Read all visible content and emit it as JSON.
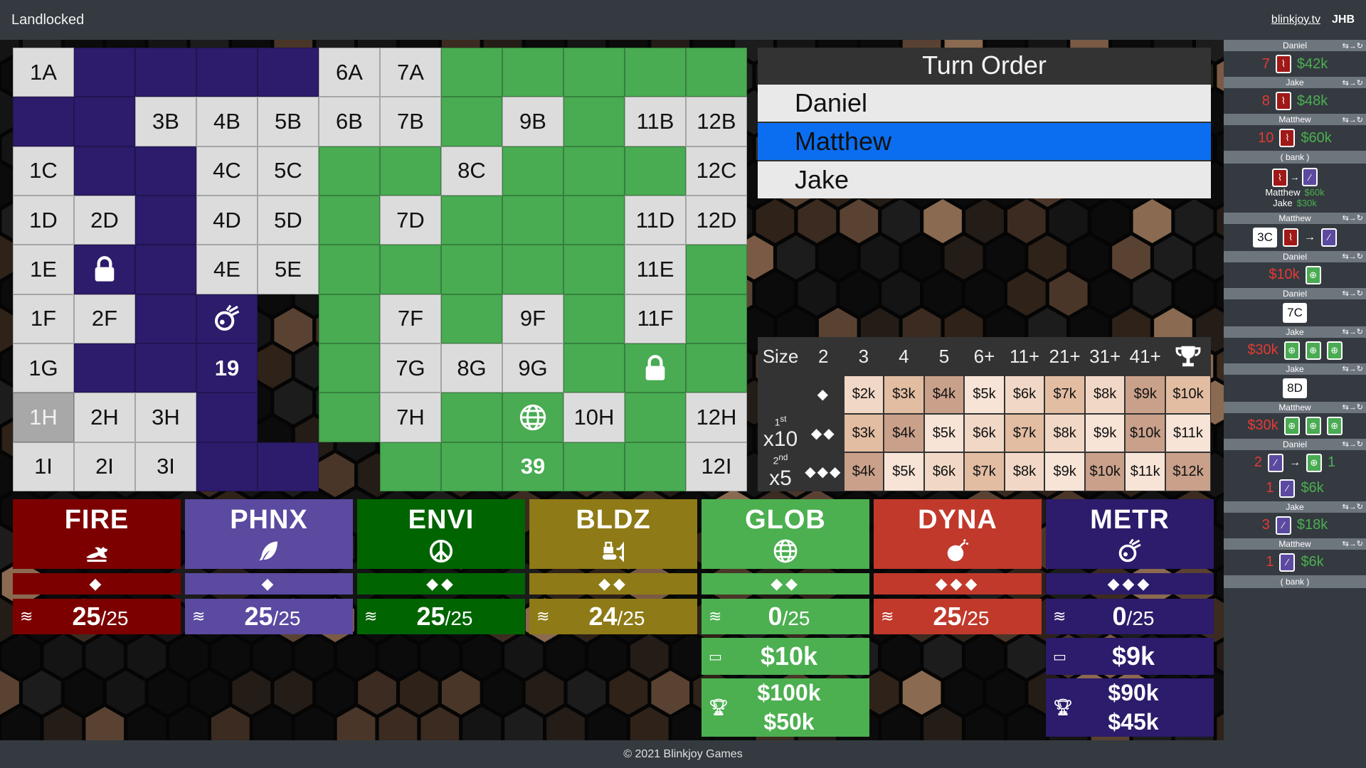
{
  "app": {
    "title": "Landlocked",
    "link": "blinkjoy.tv",
    "user": "JHB"
  },
  "footer": "© 2021 Blinkjoy Games",
  "colors": {
    "fire": "#7c0000",
    "phnx": "#5b4aa0",
    "envi": "#006400",
    "bldz": "#8e7a16",
    "glob": "#4caf50",
    "dyna": "#c0392b",
    "metr": "#2d1b6b"
  },
  "board": [
    [
      {
        "t": "N",
        "l": "1A"
      },
      {
        "t": "M"
      },
      {
        "t": "M"
      },
      {
        "t": "M"
      },
      {
        "t": "M"
      },
      {
        "t": "N",
        "l": "6A"
      },
      {
        "t": "N",
        "l": "7A"
      },
      {
        "t": "G"
      },
      {
        "t": "G"
      },
      {
        "t": "G"
      },
      {
        "t": "G"
      },
      {
        "t": "G"
      }
    ],
    [
      {
        "t": "M"
      },
      {
        "t": "M"
      },
      {
        "t": "N",
        "l": "3B"
      },
      {
        "t": "N",
        "l": "4B"
      },
      {
        "t": "N",
        "l": "5B"
      },
      {
        "t": "N",
        "l": "6B"
      },
      {
        "t": "N",
        "l": "7B"
      },
      {
        "t": "G"
      },
      {
        "t": "N",
        "l": "9B"
      },
      {
        "t": "G"
      },
      {
        "t": "N",
        "l": "11B"
      },
      {
        "t": "N",
        "l": "12B"
      }
    ],
    [
      {
        "t": "N",
        "l": "1C"
      },
      {
        "t": "M"
      },
      {
        "t": "M"
      },
      {
        "t": "N",
        "l": "4C"
      },
      {
        "t": "N",
        "l": "5C"
      },
      {
        "t": "G"
      },
      {
        "t": "G"
      },
      {
        "t": "N",
        "l": "8C"
      },
      {
        "t": "G"
      },
      {
        "t": "G"
      },
      {
        "t": "G"
      },
      {
        "t": "N",
        "l": "12C"
      }
    ],
    [
      {
        "t": "N",
        "l": "1D"
      },
      {
        "t": "N",
        "l": "2D"
      },
      {
        "t": "M"
      },
      {
        "t": "N",
        "l": "4D"
      },
      {
        "t": "N",
        "l": "5D"
      },
      {
        "t": "G"
      },
      {
        "t": "N",
        "l": "7D"
      },
      {
        "t": "G"
      },
      {
        "t": "G"
      },
      {
        "t": "G"
      },
      {
        "t": "N",
        "l": "11D"
      },
      {
        "t": "N",
        "l": "12D"
      }
    ],
    [
      {
        "t": "N",
        "l": "1E"
      },
      {
        "t": "M",
        "i": "lock-icon"
      },
      {
        "t": "M"
      },
      {
        "t": "N",
        "l": "4E"
      },
      {
        "t": "N",
        "l": "5E"
      },
      {
        "t": "G"
      },
      {
        "t": "G"
      },
      {
        "t": "G"
      },
      {
        "t": "G"
      },
      {
        "t": "G"
      },
      {
        "t": "N",
        "l": "11E"
      },
      {
        "t": "G"
      }
    ],
    [
      {
        "t": "N",
        "l": "1F"
      },
      {
        "t": "N",
        "l": "2F"
      },
      {
        "t": "M"
      },
      {
        "t": "M",
        "i": "comet-icon"
      },
      {
        "t": "E"
      },
      {
        "t": "G"
      },
      {
        "t": "N",
        "l": "7F"
      },
      {
        "t": "G"
      },
      {
        "t": "N",
        "l": "9F"
      },
      {
        "t": "G"
      },
      {
        "t": "N",
        "l": "11F"
      },
      {
        "t": "G"
      }
    ],
    [
      {
        "t": "N",
        "l": "1G"
      },
      {
        "t": "M"
      },
      {
        "t": "M"
      },
      {
        "t": "M",
        "l": "19"
      },
      {
        "t": "E"
      },
      {
        "t": "G"
      },
      {
        "t": "N",
        "l": "7G"
      },
      {
        "t": "N",
        "l": "8G"
      },
      {
        "t": "N",
        "l": "9G"
      },
      {
        "t": "G"
      },
      {
        "t": "G",
        "i": "lock-icon"
      },
      {
        "t": "G"
      }
    ],
    [
      {
        "t": "D",
        "l": "1H"
      },
      {
        "t": "N",
        "l": "2H"
      },
      {
        "t": "N",
        "l": "3H"
      },
      {
        "t": "M"
      },
      {
        "t": "E"
      },
      {
        "t": "G"
      },
      {
        "t": "N",
        "l": "7H"
      },
      {
        "t": "G"
      },
      {
        "t": "G",
        "i": "globe-icon"
      },
      {
        "t": "N",
        "l": "10H"
      },
      {
        "t": "G"
      },
      {
        "t": "N",
        "l": "12H"
      }
    ],
    [
      {
        "t": "N",
        "l": "1I"
      },
      {
        "t": "N",
        "l": "2I"
      },
      {
        "t": "N",
        "l": "3I"
      },
      {
        "t": "M"
      },
      {
        "t": "M"
      },
      {
        "t": "E"
      },
      {
        "t": "G"
      },
      {
        "t": "G"
      },
      {
        "t": "G",
        "l": "39"
      },
      {
        "t": "G"
      },
      {
        "t": "G"
      },
      {
        "t": "N",
        "l": "12I"
      }
    ]
  ],
  "turn_order": {
    "title": "Turn Order",
    "players": [
      "Daniel",
      "Matthew",
      "Jake"
    ],
    "active_index": 1
  },
  "price_table": {
    "headers": [
      "Size",
      "2",
      "3",
      "4",
      "5",
      "6+",
      "11+",
      "21+",
      "31+",
      "41+"
    ],
    "rows": [
      {
        "label": "◆",
        "prices": [
          "$2k",
          "$3k",
          "$4k",
          "$5k",
          "$6k",
          "$7k",
          "$8k",
          "$9k",
          "$10k"
        ],
        "shade": [
          "p1",
          "p2",
          "p3",
          "p4",
          "p1",
          "p2",
          "p1",
          "p3",
          "p2"
        ]
      },
      {
        "label": "◆◆",
        "prices": [
          "$3k",
          "$4k",
          "$5k",
          "$6k",
          "$7k",
          "$8k",
          "$9k",
          "$10k",
          "$11k"
        ],
        "shade": [
          "p2",
          "p3",
          "p4",
          "p1",
          "p2",
          "p1",
          "p4",
          "p3",
          "p4"
        ]
      },
      {
        "label": "◆◆◆",
        "prices": [
          "$4k",
          "$5k",
          "$6k",
          "$7k",
          "$8k",
          "$9k",
          "$10k",
          "$11k",
          "$12k"
        ],
        "shade": [
          "p3",
          "p4",
          "p1",
          "p2",
          "p1",
          "p4",
          "p3",
          "p4",
          "p3"
        ]
      }
    ],
    "bonus": {
      "first_sup": "1st",
      "first_mult": "x10",
      "second_sup": "2nd",
      "second_mult": "x5"
    }
  },
  "companies": [
    {
      "name": "FIRE",
      "icon": "dragon-icon",
      "tier": "◆",
      "stock": "25",
      "max": "/25",
      "bg": "#7c0000",
      "light": "#8c0a0a"
    },
    {
      "name": "PHNX",
      "icon": "feather-icon",
      "tier": "◆",
      "stock": "25",
      "max": "/25",
      "bg": "#5b4aa0",
      "light": "#6656a8"
    },
    {
      "name": "ENVI",
      "icon": "peace-icon",
      "tier": "◆◆",
      "stock": "25",
      "max": "/25",
      "bg": "#006400",
      "light": "#0a6e0a"
    },
    {
      "name": "BLDZ",
      "icon": "bulldozer-icon",
      "tier": "◆◆",
      "stock": "24",
      "max": "/25",
      "bg": "#8e7a16",
      "light": "#98841f"
    },
    {
      "name": "GLOB",
      "icon": "globe-icon",
      "tier": "◆◆",
      "stock": "0",
      "max": "/25",
      "bg": "#4caf50",
      "light": "#55b559",
      "money": "$10k",
      "prize1": "$100k",
      "prize2": "$50k"
    },
    {
      "name": "DYNA",
      "icon": "bomb-icon",
      "tier": "◆◆◆",
      "stock": "25",
      "max": "/25",
      "bg": "#c0392b",
      "light": "#c74235"
    },
    {
      "name": "METR",
      "icon": "comet-icon",
      "tier": "◆◆◆",
      "stock": "0",
      "max": "/25",
      "bg": "#2d1b6b",
      "light": "#352374",
      "money": "$9k",
      "prize1": "$90k",
      "prize2": "$45k"
    }
  ],
  "history": [
    {
      "kind": "buy",
      "player": "Daniel",
      "count": "7",
      "co": "fire",
      "money": "$42k"
    },
    {
      "kind": "buy",
      "player": "Jake",
      "count": "8",
      "co": "fire",
      "money": "$48k"
    },
    {
      "kind": "buy",
      "player": "Matthew",
      "count": "10",
      "co": "fire",
      "money": "$60k"
    },
    {
      "kind": "bank",
      "label": "( bank )"
    },
    {
      "kind": "merge",
      "p1": "Matthew",
      "v1": "$60k",
      "p2": "Jake",
      "v2": "$30k"
    },
    {
      "kind": "tile",
      "player": "Matthew",
      "tile": "3C"
    },
    {
      "kind": "cash",
      "player": "Daniel",
      "money": "$10k"
    },
    {
      "kind": "place",
      "player": "Daniel",
      "tile": "7C"
    },
    {
      "kind": "sell",
      "player": "Jake",
      "money": "$30k"
    },
    {
      "kind": "place",
      "player": "Jake",
      "tile": "8D"
    },
    {
      "kind": "sell",
      "player": "Matthew",
      "money": "$30k"
    },
    {
      "kind": "trade",
      "player": "Daniel",
      "from": "2",
      "to": "1",
      "count": "1",
      "money": "$6k"
    },
    {
      "kind": "buy2",
      "player": "Jake",
      "count": "3",
      "money": "$18k"
    },
    {
      "kind": "buy2",
      "player": "Matthew",
      "count": "1",
      "money": "$6k"
    },
    {
      "kind": "bank",
      "label": "( bank )"
    }
  ]
}
